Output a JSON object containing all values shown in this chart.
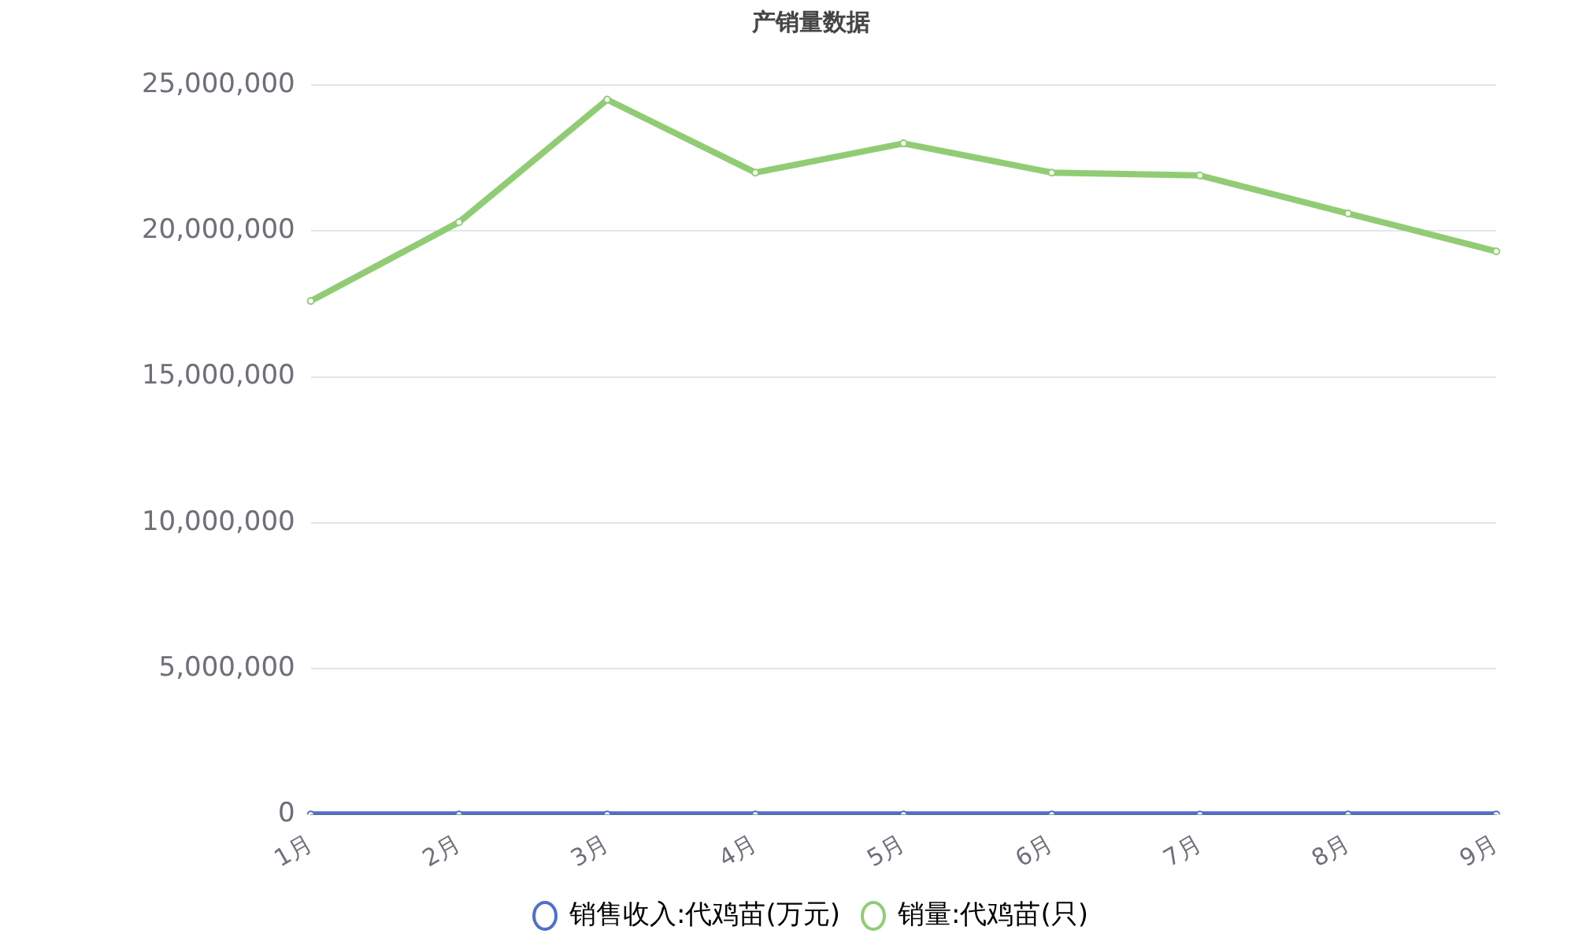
{
  "chart_data": {
    "type": "line",
    "title": "产销量数据",
    "categories": [
      "1月",
      "2月",
      "3月",
      "4月",
      "5月",
      "6月",
      "7月",
      "8月",
      "9月"
    ],
    "series": [
      {
        "name": "销售收入:代鸡苗(万元)",
        "color": "#4f6fcc",
        "values": [
          0,
          0,
          0,
          0,
          0,
          0,
          0,
          0,
          0
        ]
      },
      {
        "name": "销量:代鸡苗(只)",
        "color": "#91cc75",
        "values": [
          17600000,
          20300000,
          24500000,
          22000000,
          23000000,
          22000000,
          21900000,
          20600000,
          19300000
        ]
      }
    ],
    "ylim": [
      0,
      25000000
    ],
    "yticks": [
      0,
      {
        "value": 5000000,
        "label": "5,000,000"
      },
      {
        "value": 10000000,
        "label": "10,000,000"
      },
      {
        "value": 15000000,
        "label": "15,000,000"
      },
      {
        "value": 20000000,
        "label": "20,000,000"
      },
      {
        "value": 25000000,
        "label": "25,000,000"
      }
    ],
    "grid": "y",
    "legend": "bottom",
    "marker": "circle",
    "line_style": "solid"
  }
}
